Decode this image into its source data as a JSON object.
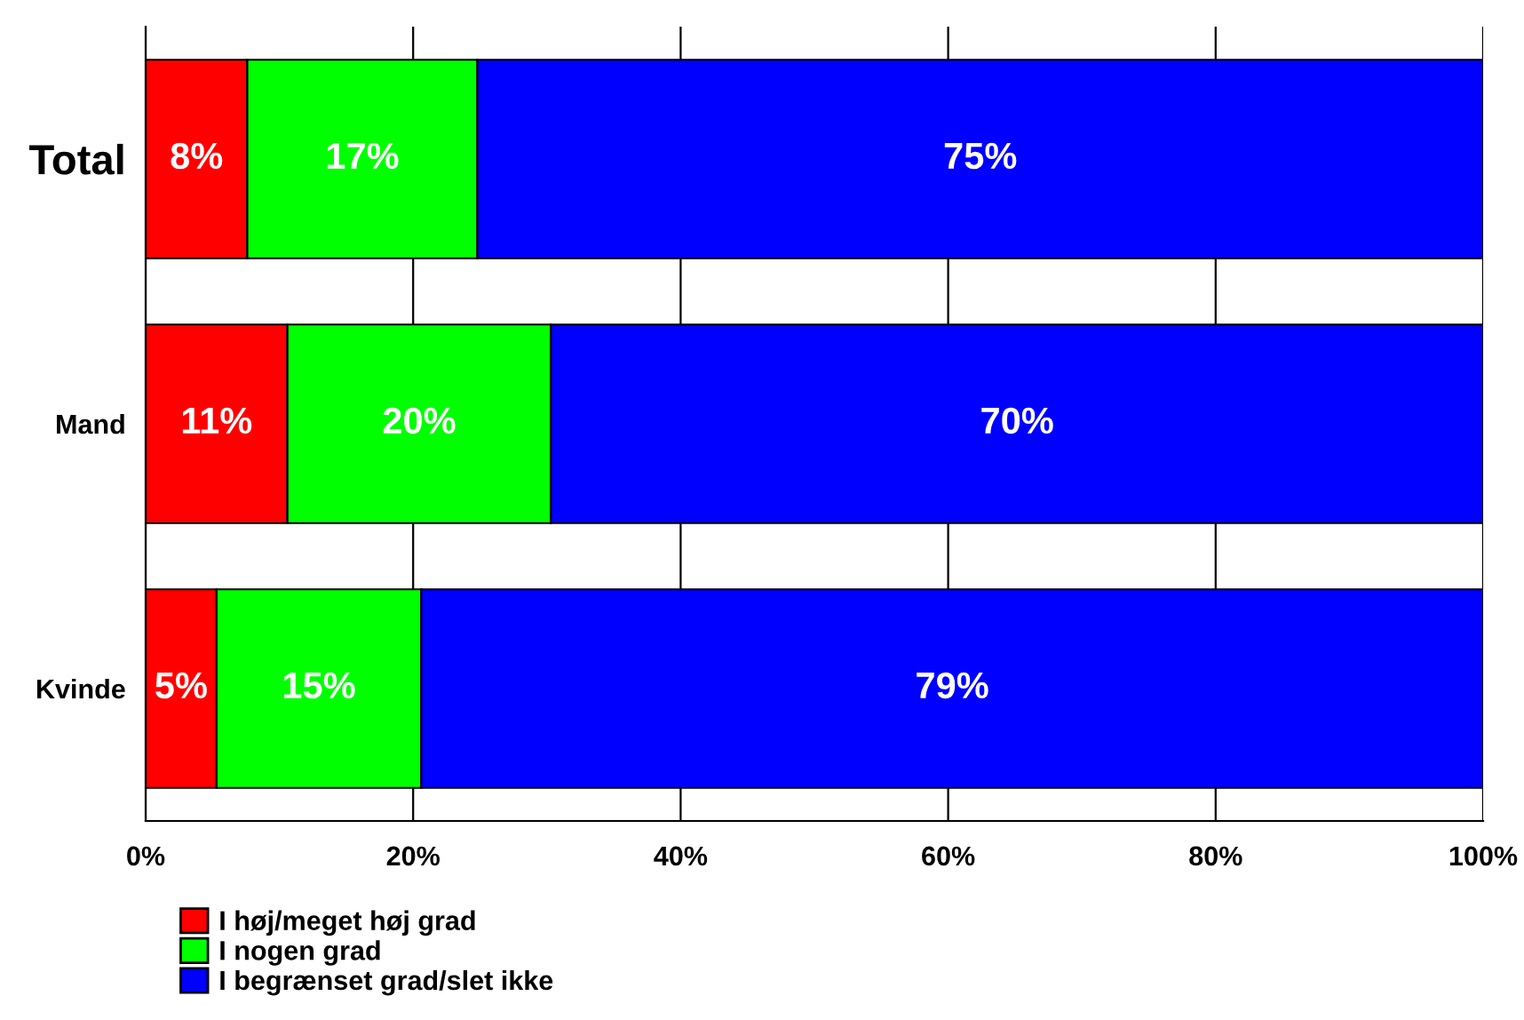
{
  "chart_data": {
    "type": "bar",
    "orientation": "horizontal",
    "stacked": true,
    "categories": [
      "Total",
      "Mand",
      "Kvinde"
    ],
    "series": [
      {
        "name": "I høj/meget høj grad",
        "color": "#ff0000",
        "values": [
          7.6,
          10.6,
          5.3
        ],
        "value_labels": [
          "8%",
          "11%",
          "5%"
        ]
      },
      {
        "name": "I nogen grad",
        "color": "#00ff00",
        "values": [
          17.2,
          19.7,
          15.3
        ],
        "value_labels": [
          "17%",
          "20%",
          "15%"
        ]
      },
      {
        "name": "I begrænset grad/slet ikke",
        "color": "#0000ff",
        "values": [
          75.2,
          69.7,
          79.4
        ],
        "value_labels": [
          "75%",
          "70%",
          "79%"
        ]
      }
    ],
    "xlim": [
      0,
      100
    ],
    "xticks": [
      {
        "value": 0,
        "label": "0%"
      },
      {
        "value": 20,
        "label": "20%"
      },
      {
        "value": 40,
        "label": "40%"
      },
      {
        "value": 60,
        "label": "60%"
      },
      {
        "value": 80,
        "label": "80%"
      },
      {
        "value": 100,
        "label": "100%"
      }
    ],
    "grid": "x",
    "legend": "bottom left"
  }
}
